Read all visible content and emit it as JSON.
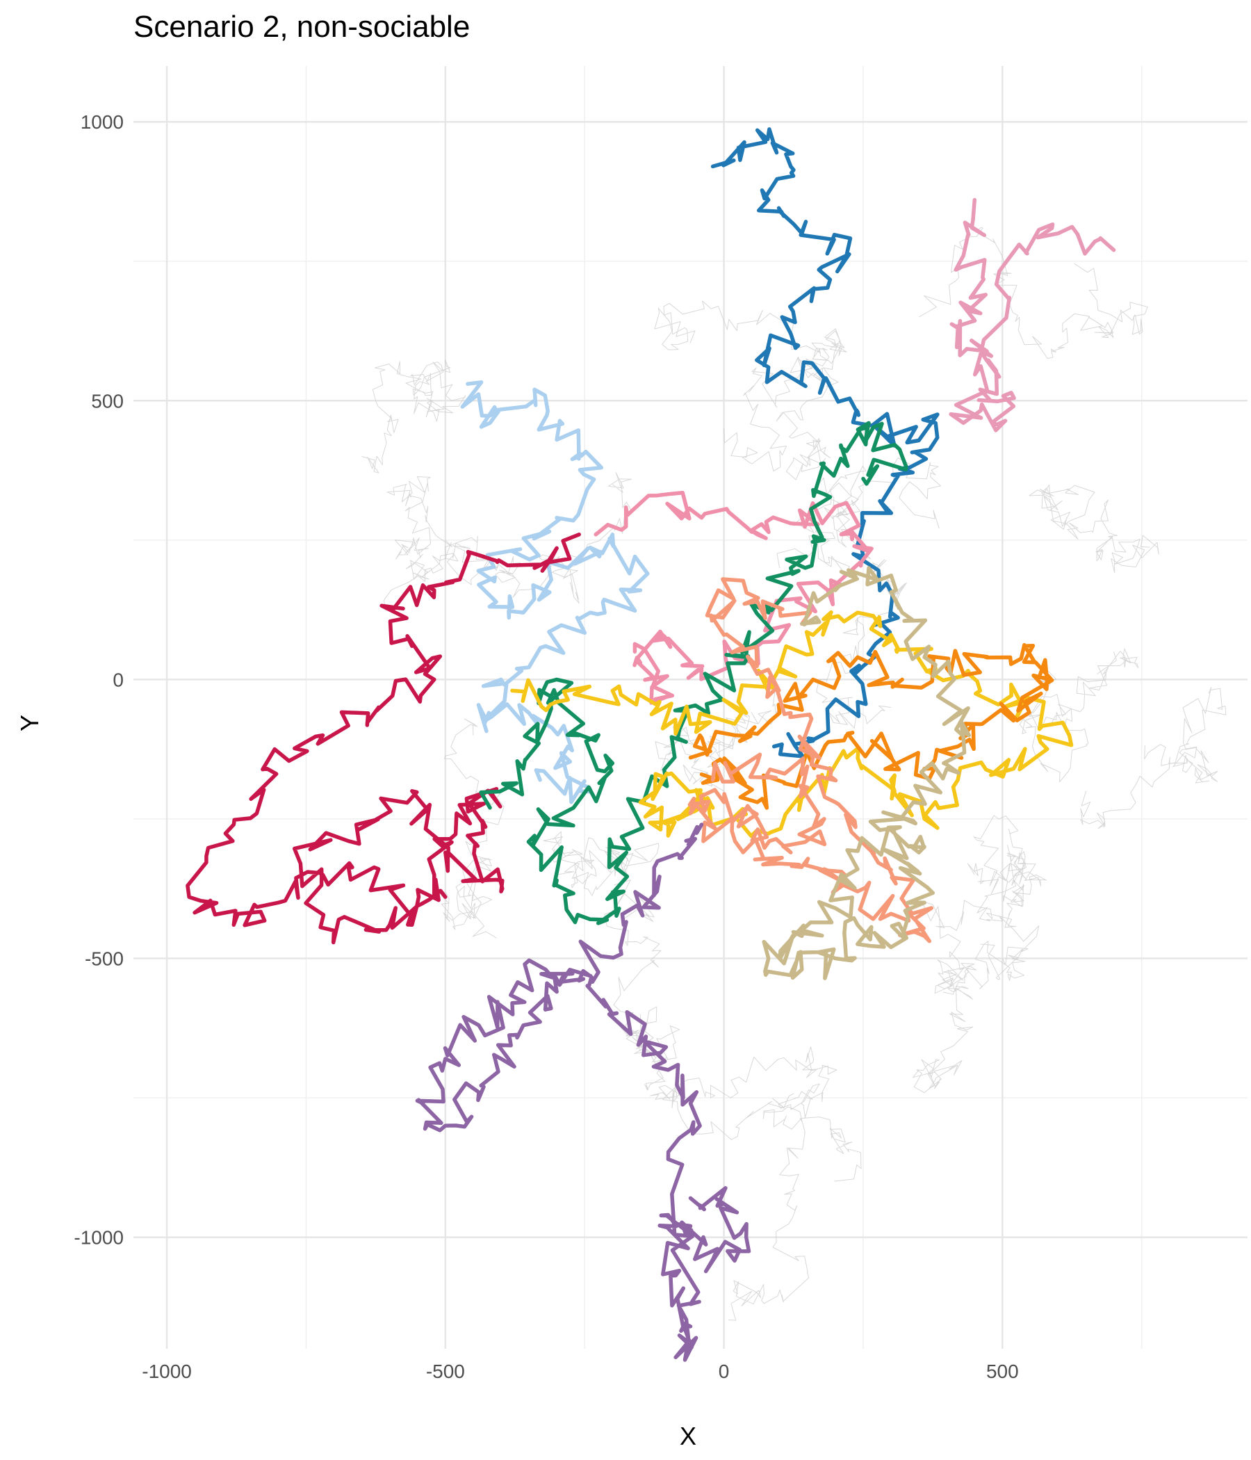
{
  "title": "Scenario 2, non-sociable",
  "chart_data": {
    "type": "line",
    "title": "Scenario 2, non-sociable",
    "xlabel": "X",
    "ylabel": "Y",
    "xlim": [
      -1060,
      940
    ],
    "ylim": [
      -1200,
      1100
    ],
    "xticks": [
      -1000,
      -500,
      0,
      500
    ],
    "yticks": [
      -1000,
      -500,
      0,
      500,
      1000
    ],
    "xtick_labels": [
      "-1000",
      "-500",
      "0",
      "500"
    ],
    "ytick_labels": [
      "-1000",
      "-500",
      "0",
      "500",
      "1000"
    ],
    "grid": true,
    "legend": "none",
    "background_tracks_color": "#c8c8c8",
    "series": [
      {
        "color": "#1f77b4",
        "points": [
          [
            -20,
            920
          ],
          [
            60,
            985
          ],
          [
            120,
            920
          ],
          [
            80,
            860
          ],
          [
            140,
            800
          ],
          [
            220,
            760
          ],
          [
            160,
            700
          ],
          [
            120,
            620
          ],
          [
            80,
            560
          ],
          [
            180,
            540
          ],
          [
            240,
            480
          ],
          [
            300,
            430
          ],
          [
            380,
            460
          ],
          [
            330,
            380
          ],
          [
            280,
            320
          ],
          [
            250,
            220
          ],
          [
            300,
            120
          ],
          [
            270,
            40
          ],
          [
            240,
            -40
          ],
          [
            160,
            -110
          ],
          [
            90,
            -120
          ]
        ]
      },
      {
        "color": "#e899b6",
        "points": [
          [
            450,
            860
          ],
          [
            430,
            760
          ],
          [
            470,
            690
          ],
          [
            420,
            630
          ],
          [
            480,
            580
          ],
          [
            460,
            520
          ],
          [
            520,
            490
          ],
          [
            430,
            460
          ],
          [
            460,
            580
          ],
          [
            530,
            780
          ],
          [
            600,
            800
          ],
          [
            700,
            770
          ]
        ]
      },
      {
        "color": "#f08fa9",
        "points": [
          [
            -230,
            260
          ],
          [
            -120,
            330
          ],
          [
            -40,
            290
          ],
          [
            60,
            260
          ],
          [
            120,
            280
          ],
          [
            200,
            310
          ],
          [
            260,
            230
          ],
          [
            210,
            170
          ],
          [
            130,
            140
          ],
          [
            60,
            60
          ],
          [
            -40,
            20
          ],
          [
            -110,
            80
          ],
          [
            -150,
            30
          ],
          [
            -100,
            -30
          ],
          [
            -160,
            50
          ]
        ]
      },
      {
        "color": "#aacfef",
        "points": [
          [
            -460,
            530
          ],
          [
            -420,
            460
          ],
          [
            -340,
            520
          ],
          [
            -300,
            430
          ],
          [
            -220,
            380
          ],
          [
            -300,
            290
          ],
          [
            -380,
            230
          ],
          [
            -440,
            170
          ],
          [
            -360,
            120
          ],
          [
            -280,
            200
          ],
          [
            -200,
            260
          ],
          [
            -150,
            160
          ],
          [
            -240,
            120
          ],
          [
            -320,
            60
          ],
          [
            -400,
            0
          ],
          [
            -430,
            -80
          ],
          [
            -350,
            -60
          ],
          [
            -280,
            -120
          ],
          [
            -260,
            -200
          ],
          [
            -330,
            -180
          ]
        ]
      },
      {
        "color": "#c8164b",
        "points": [
          [
            -260,
            260
          ],
          [
            -340,
            200
          ],
          [
            -430,
            220
          ],
          [
            -520,
            160
          ],
          [
            -600,
            130
          ],
          [
            -560,
            60
          ],
          [
            -520,
            0
          ],
          [
            -620,
            -50
          ],
          [
            -720,
            -100
          ],
          [
            -820,
            -160
          ],
          [
            -880,
            -260
          ],
          [
            -960,
            -390
          ],
          [
            -880,
            -440
          ],
          [
            -800,
            -400
          ],
          [
            -720,
            -350
          ],
          [
            -620,
            -340
          ],
          [
            -560,
            -440
          ],
          [
            -520,
            -350
          ],
          [
            -480,
            -240
          ],
          [
            -420,
            -200
          ],
          [
            -460,
            -280
          ],
          [
            -400,
            -380
          ],
          [
            -500,
            -310
          ],
          [
            -560,
            -200
          ],
          [
            -660,
            -260
          ],
          [
            -760,
            -330
          ],
          [
            -700,
            -450
          ],
          [
            -600,
            -440
          ],
          [
            -500,
            -390
          ]
        ]
      },
      {
        "color": "#139061",
        "points": [
          [
            -420,
            -230
          ],
          [
            -360,
            -160
          ],
          [
            -320,
            -80
          ],
          [
            -300,
            0
          ],
          [
            -260,
            -100
          ],
          [
            -200,
            -150
          ],
          [
            -270,
            -230
          ],
          [
            -340,
            -280
          ],
          [
            -300,
            -360
          ],
          [
            -240,
            -430
          ],
          [
            -180,
            -380
          ],
          [
            -200,
            -300
          ],
          [
            -120,
            -180
          ],
          [
            -80,
            -90
          ],
          [
            -20,
            -20
          ],
          [
            40,
            40
          ],
          [
            80,
            120
          ],
          [
            120,
            200
          ],
          [
            180,
            250
          ],
          [
            160,
            340
          ],
          [
            210,
            420
          ],
          [
            260,
            460
          ],
          [
            320,
            400
          ],
          [
            250,
            360
          ]
        ]
      },
      {
        "color": "#f5c518",
        "points": [
          [
            -380,
            -20
          ],
          [
            -300,
            -40
          ],
          [
            -200,
            -20
          ],
          [
            -120,
            -50
          ],
          [
            -60,
            -80
          ],
          [
            40,
            -60
          ],
          [
            100,
            20
          ],
          [
            160,
            80
          ],
          [
            240,
            120
          ],
          [
            300,
            80
          ],
          [
            380,
            20
          ],
          [
            460,
            -20
          ],
          [
            540,
            -40
          ],
          [
            620,
            -100
          ],
          [
            520,
            -160
          ],
          [
            420,
            -180
          ],
          [
            360,
            -250
          ],
          [
            300,
            -180
          ],
          [
            220,
            -140
          ],
          [
            140,
            -210
          ],
          [
            60,
            -270
          ],
          [
            -20,
            -230
          ],
          [
            -100,
            -170
          ],
          [
            -150,
            -220
          ],
          [
            -100,
            -280
          ],
          [
            -40,
            -220
          ]
        ]
      },
      {
        "color": "#f5890f",
        "points": [
          [
            -60,
            -140
          ],
          [
            20,
            -100
          ],
          [
            100,
            -60
          ],
          [
            160,
            0
          ],
          [
            240,
            40
          ],
          [
            320,
            0
          ],
          [
            400,
            20
          ],
          [
            470,
            40
          ],
          [
            540,
            60
          ],
          [
            580,
            0
          ],
          [
            540,
            -40
          ],
          [
            460,
            -80
          ],
          [
            420,
            -120
          ],
          [
            360,
            -160
          ],
          [
            300,
            -140
          ],
          [
            220,
            -100
          ],
          [
            140,
            -160
          ],
          [
            60,
            -220
          ],
          [
            20,
            -160
          ],
          [
            -40,
            -170
          ]
        ]
      },
      {
        "color": "#f59979",
        "points": [
          [
            -20,
            -180
          ],
          [
            60,
            -150
          ],
          [
            140,
            -170
          ],
          [
            180,
            -250
          ],
          [
            120,
            -310
          ],
          [
            60,
            -250
          ],
          [
            0,
            -220
          ],
          [
            -60,
            -240
          ],
          [
            20,
            -290
          ],
          [
            100,
            -330
          ],
          [
            180,
            -340
          ],
          [
            240,
            -380
          ],
          [
            300,
            -420
          ],
          [
            360,
            -460
          ],
          [
            340,
            -360
          ],
          [
            260,
            -300
          ],
          [
            200,
            -220
          ],
          [
            160,
            -140
          ],
          [
            120,
            -60
          ],
          [
            60,
            10
          ],
          [
            0,
            80
          ],
          [
            -10,
            160
          ],
          [
            60,
            140
          ],
          [
            140,
            100
          ]
        ]
      },
      {
        "color": "#c8b88a",
        "points": [
          [
            140,
            100
          ],
          [
            200,
            160
          ],
          [
            260,
            200
          ],
          [
            320,
            120
          ],
          [
            360,
            40
          ],
          [
            400,
            -40
          ],
          [
            440,
            -100
          ],
          [
            400,
            -160
          ],
          [
            340,
            -220
          ],
          [
            280,
            -270
          ],
          [
            330,
            -330
          ],
          [
            360,
            -400
          ],
          [
            300,
            -480
          ],
          [
            240,
            -440
          ],
          [
            200,
            -500
          ],
          [
            140,
            -520
          ],
          [
            80,
            -500
          ],
          [
            140,
            -460
          ],
          [
            200,
            -410
          ],
          [
            240,
            -340
          ],
          [
            300,
            -270
          ],
          [
            360,
            -300
          ]
        ]
      },
      {
        "color": "#8e65a4",
        "points": [
          [
            -60,
            -930
          ],
          [
            0,
            -940
          ],
          [
            40,
            -1000
          ],
          [
            -20,
            -1040
          ],
          [
            -60,
            -980
          ],
          [
            -100,
            -960
          ],
          [
            -80,
            -1060
          ],
          [
            -60,
            -1160
          ],
          [
            -70,
            -1220
          ],
          [
            -60,
            -1120
          ],
          [
            -100,
            -860
          ],
          [
            -60,
            -760
          ],
          [
            -100,
            -700
          ],
          [
            -140,
            -640
          ],
          [
            -200,
            -600
          ],
          [
            -260,
            -540
          ],
          [
            -320,
            -520
          ],
          [
            -380,
            -580
          ],
          [
            -440,
            -620
          ],
          [
            -500,
            -680
          ],
          [
            -540,
            -760
          ],
          [
            -500,
            -800
          ],
          [
            -440,
            -740
          ],
          [
            -400,
            -680
          ],
          [
            -360,
            -620
          ],
          [
            -300,
            -560
          ],
          [
            -240,
            -500
          ],
          [
            -180,
            -440
          ],
          [
            -120,
            -380
          ],
          [
            -80,
            -320
          ],
          [
            -40,
            -260
          ]
        ]
      }
    ]
  }
}
